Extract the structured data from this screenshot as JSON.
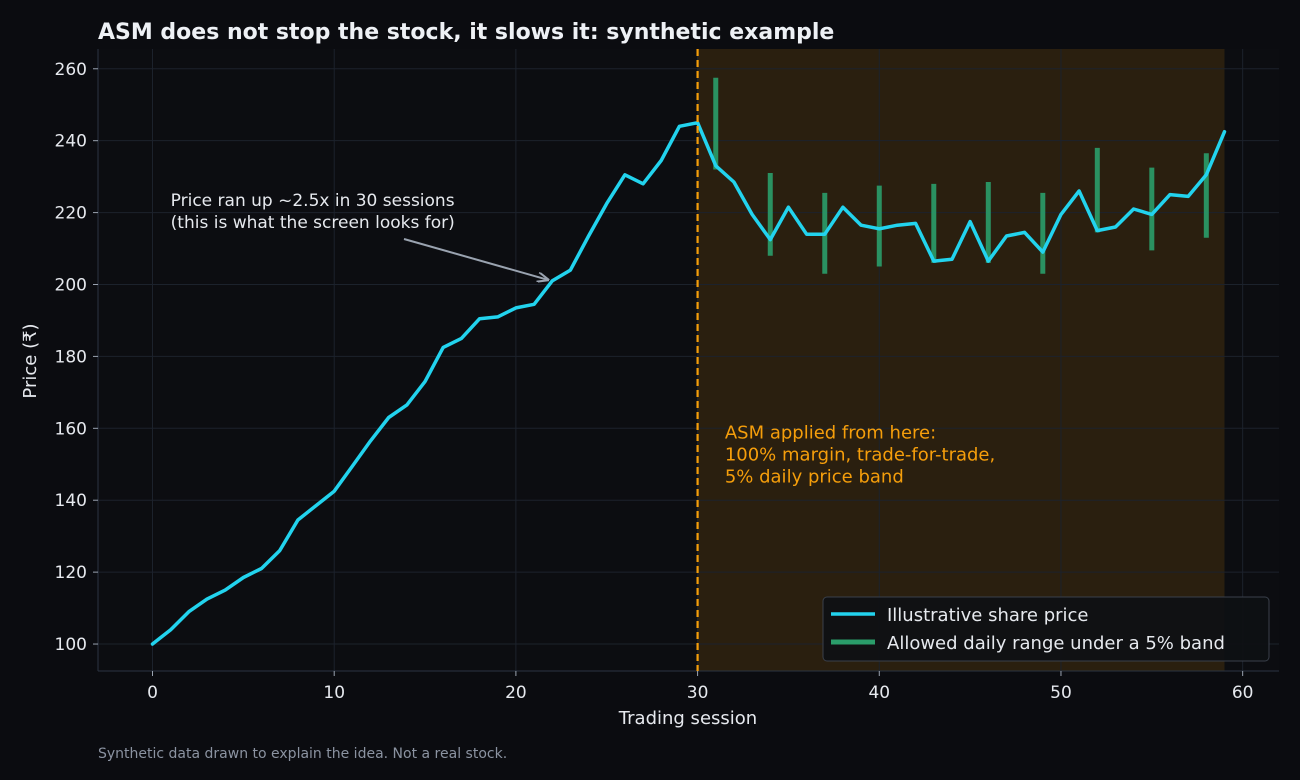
{
  "chart_data": {
    "type": "line",
    "title": "ASM does not stop the stock, it slows it: synthetic example",
    "xlabel": "Trading session",
    "ylabel": "Price (₹)",
    "xlim": [
      -3,
      62
    ],
    "ylim": [
      92.5,
      265.5
    ],
    "xticks": [
      0,
      10,
      20,
      30,
      40,
      50,
      60
    ],
    "yticks": [
      100,
      120,
      140,
      160,
      180,
      200,
      220,
      240,
      260
    ],
    "grid": true,
    "legend_position": "lower-right",
    "series": [
      {
        "name": "Illustrative share price",
        "color": "#22d3ee",
        "x": [
          0,
          1,
          2,
          3,
          4,
          5,
          6,
          7,
          8,
          9,
          10,
          11,
          12,
          13,
          14,
          15,
          16,
          17,
          18,
          19,
          20,
          21,
          22,
          23,
          24,
          25,
          26,
          27,
          28,
          29,
          30,
          31,
          32,
          33,
          34,
          35,
          36,
          37,
          38,
          39,
          40,
          41,
          42,
          43,
          44,
          45,
          46,
          47,
          48,
          49,
          50,
          51,
          52,
          53,
          54,
          55,
          56,
          57,
          58,
          59
        ],
        "y": [
          100,
          104,
          109,
          112.5,
          115,
          118.5,
          121,
          126,
          134.5,
          138.5,
          142.5,
          149.5,
          156.5,
          163,
          166.5,
          173,
          182.5,
          185,
          190.5,
          191,
          193.5,
          194.5,
          201,
          204,
          213.5,
          222.5,
          230.5,
          228,
          234.5,
          244,
          245,
          233,
          228.5,
          219.5,
          212.5,
          221.5,
          214,
          214,
          221.5,
          216.5,
          215.5,
          216.5,
          217,
          206.5,
          207,
          217.5,
          206.5,
          213.5,
          214.5,
          209,
          219.5,
          226,
          215,
          216,
          221,
          219.5,
          225,
          224.5,
          230.5,
          242.5
        ]
      },
      {
        "name": "Allowed daily range under a 5% band",
        "color": "#2a9d6a",
        "sessions": [
          31,
          34,
          37,
          40,
          43,
          46,
          49,
          52,
          55,
          58
        ],
        "low": [
          232,
          208,
          203,
          205,
          206,
          206,
          203,
          214.5,
          209.5,
          213
        ],
        "high": [
          257.5,
          231,
          225.5,
          227.5,
          228,
          228.5,
          225.5,
          238,
          232.5,
          236.5
        ]
      }
    ],
    "shaded_region": {
      "x_start": 30,
      "x_end": 59,
      "color": "#f59e0b"
    },
    "vertical_line": {
      "x": 30,
      "color": "#f59e0b"
    },
    "annotations": [
      {
        "text_lines": [
          "Price ran up ~2.5x in 30 sessions",
          "(this is what the screen looks for)"
        ],
        "x": 1,
        "y": 221,
        "arrow_to_x": 22,
        "arrow_to_y": 201
      },
      {
        "text_lines": [
          "ASM applied from here:",
          "100% margin, trade-for-trade,",
          "5% daily price band"
        ],
        "x": 31.5,
        "y": 155,
        "color": "#f59e0b"
      }
    ]
  },
  "footnote": "Synthetic data drawn to explain the idea. Not a real stock."
}
